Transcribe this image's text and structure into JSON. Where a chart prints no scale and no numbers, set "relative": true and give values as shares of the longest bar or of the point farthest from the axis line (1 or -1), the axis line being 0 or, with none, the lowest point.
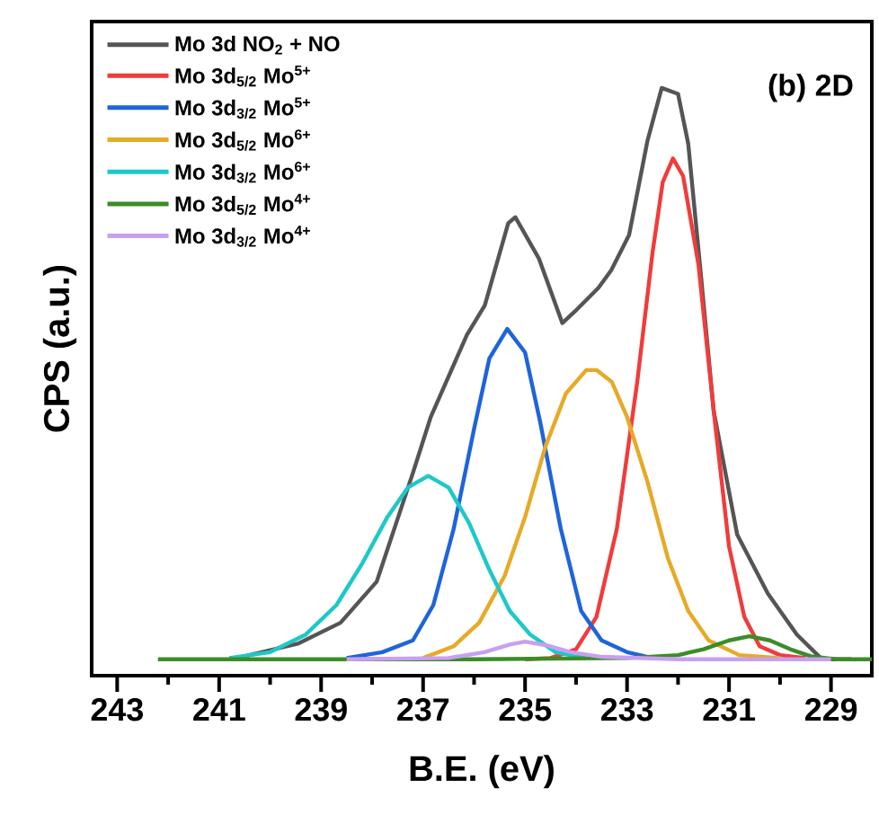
{
  "chart_data": {
    "type": "line",
    "relative": true,
    "xlabel": "B.E. (eV)",
    "ylabel": "CPS (a.u.)",
    "annotations": [
      "(b) 2D"
    ],
    "xlim": [
      243.5,
      228.2
    ],
    "xticks": [
      243,
      {
        "value": 242,
        "label": null
      },
      241,
      {
        "value": 240,
        "label": null
      },
      239,
      {
        "value": 238,
        "label": null
      },
      237,
      {
        "value": 236,
        "label": null
      },
      235,
      {
        "value": 234,
        "label": null
      },
      233,
      {
        "value": 232,
        "label": null
      },
      231,
      {
        "value": 230,
        "label": null
      },
      229
    ],
    "legend": "top left",
    "marker": "none",
    "line_style": "solid",
    "series": [
      {
        "name": "Mo 3d NO$_{2}$ + NO",
        "color": "#555555",
        "x": [
          240.74,
          239.44,
          238.62,
          237.91,
          237.2,
          236.85,
          236.14,
          235.79,
          235.33,
          235.19,
          234.73,
          234.27,
          234.02,
          233.56,
          233.31,
          232.96,
          232.6,
          232.32,
          232.0,
          231.8,
          231.55,
          231.3,
          230.84,
          230.24,
          229.67,
          229.18,
          228.6
        ],
        "values": [
          0.028,
          0.055,
          0.09,
          0.16,
          0.345,
          0.44,
          0.58,
          0.63,
          0.77,
          0.78,
          0.71,
          0.6,
          0.62,
          0.66,
          0.69,
          0.75,
          0.91,
          1.0,
          0.99,
          0.905,
          0.68,
          0.45,
          0.24,
          0.14,
          0.07,
          0.028,
          0.028
        ]
      },
      {
        "name": "Mo 3d$_{5/2}$ Mo$^{5+}$",
        "color": "#f03c3c",
        "x": [
          235.0,
          234.5,
          234.0,
          233.6,
          233.2,
          232.8,
          232.5,
          232.3,
          232.1,
          231.9,
          231.6,
          231.3,
          231.0,
          230.7,
          230.4,
          230.0,
          229.5
        ],
        "values": [
          0.028,
          0.03,
          0.045,
          0.1,
          0.25,
          0.5,
          0.72,
          0.84,
          0.88,
          0.85,
          0.7,
          0.45,
          0.22,
          0.1,
          0.05,
          0.035,
          0.03
        ]
      },
      {
        "name": "Mo 3d$_{3/2}$ Mo$^{5+}$",
        "color": "#1e64dc",
        "x": [
          238.5,
          237.8,
          237.2,
          236.8,
          236.4,
          236.0,
          235.7,
          235.35,
          235.0,
          234.7,
          234.3,
          233.9,
          233.5,
          233.0,
          232.5
        ],
        "values": [
          0.03,
          0.04,
          0.06,
          0.12,
          0.25,
          0.42,
          0.54,
          0.59,
          0.55,
          0.43,
          0.25,
          0.11,
          0.06,
          0.04,
          0.03
        ]
      },
      {
        "name": "Mo 3d$_{5/2}$ Mo$^{6+}$",
        "color": "#e6aa28",
        "x": [
          237.0,
          236.4,
          235.9,
          235.4,
          235.0,
          234.6,
          234.2,
          233.8,
          233.6,
          233.3,
          233.0,
          232.6,
          232.2,
          231.8,
          231.4,
          230.8,
          230.0
        ],
        "values": [
          0.03,
          0.05,
          0.09,
          0.17,
          0.27,
          0.39,
          0.48,
          0.52,
          0.52,
          0.5,
          0.44,
          0.33,
          0.2,
          0.11,
          0.06,
          0.035,
          0.03
        ]
      },
      {
        "name": "Mo 3d$_{3/2}$ Mo$^{6+}$",
        "color": "#1ec8c8",
        "x": [
          240.8,
          240.0,
          239.3,
          238.7,
          238.2,
          237.7,
          237.3,
          236.9,
          236.5,
          236.1,
          235.7,
          235.3,
          234.9,
          234.4,
          233.8
        ],
        "values": [
          0.03,
          0.04,
          0.07,
          0.12,
          0.19,
          0.27,
          0.32,
          0.34,
          0.32,
          0.26,
          0.18,
          0.11,
          0.07,
          0.04,
          0.03
        ]
      },
      {
        "name": "Mo 3d$_{5/2}$ Mo$^{4+}$",
        "color": "#3c8c28",
        "x": [
          242.2,
          236.0,
          233.0,
          232.0,
          231.5,
          231.0,
          230.6,
          230.2,
          229.8,
          229.4,
          228.9,
          228.2
        ],
        "values": [
          0.028,
          0.028,
          0.03,
          0.035,
          0.045,
          0.06,
          0.067,
          0.06,
          0.045,
          0.033,
          0.028,
          0.028
        ]
      },
      {
        "name": "Mo 3d$_{3/2}$ Mo$^{4+}$",
        "color": "#c8a0f0",
        "x": [
          238.5,
          236.5,
          235.8,
          235.3,
          235.0,
          234.6,
          234.1,
          233.5,
          232.0,
          229.0
        ],
        "values": [
          0.028,
          0.03,
          0.04,
          0.053,
          0.058,
          0.052,
          0.04,
          0.032,
          0.028,
          0.028
        ]
      }
    ]
  }
}
